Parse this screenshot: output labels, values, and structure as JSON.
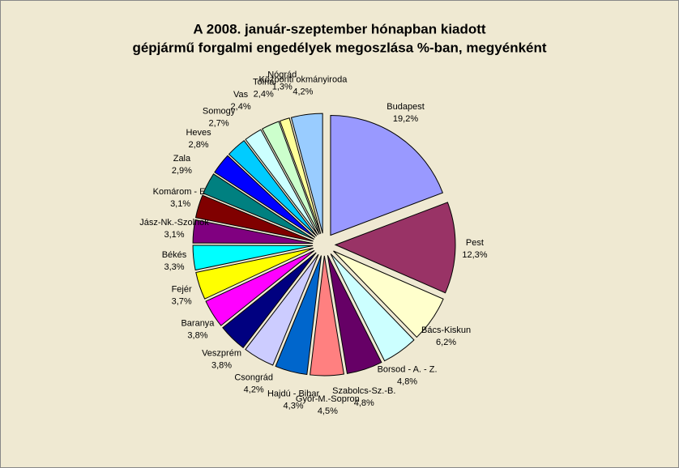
{
  "chart_data": {
    "type": "pie",
    "title": [
      "A  2008. január-szeptember hónapban kiadott",
      "gépjármű forgalmi engedélyek megoszlása %-ban, megyénként"
    ],
    "categories": [
      "Budapest",
      "Pest",
      "Bács-Kiskun",
      "Borsod - A. - Z.",
      "Szabolcs-Sz.-B.",
      "Győr-M.-Sopron",
      "Hajdú - Bihar",
      "Csongrád",
      "Veszprém",
      "Baranya",
      "Fejér",
      "Békés",
      "Jász-Nk.-Szolnok",
      "Komárom - E.",
      "Zala",
      "Heves",
      "Somogy",
      "Vas",
      "Tolna",
      "Nógrád",
      "Központi okmányiroda"
    ],
    "values": [
      19.2,
      12.3,
      6.2,
      4.8,
      4.8,
      4.5,
      4.3,
      4.2,
      3.8,
      3.8,
      3.7,
      3.3,
      3.1,
      3.1,
      2.9,
      2.8,
      2.7,
      2.4,
      2.4,
      1.3,
      4.2
    ],
    "value_labels": [
      "19,2%",
      "12,3%",
      "6,2%",
      "4,8%",
      "4,8%",
      "4,5%",
      "4,3%",
      "4,2%",
      "3,8%",
      "3,8%",
      "3,7%",
      "3,3%",
      "3,1%",
      "3,1%",
      "2,9%",
      "2,8%",
      "2,7%",
      "2,4%",
      "2,4%",
      "1,3%",
      "4,2%"
    ],
    "colors": [
      "#9999ff",
      "#993366",
      "#ffffcc",
      "#ccffff",
      "#660066",
      "#ff8080",
      "#0066cc",
      "#ccccff",
      "#000080",
      "#ff00ff",
      "#ffff00",
      "#00ffff",
      "#800080",
      "#800000",
      "#008080",
      "#0000ff",
      "#00ccff",
      "#ccffff",
      "#ccffcc",
      "#ffff99",
      "#99ccff"
    ]
  }
}
